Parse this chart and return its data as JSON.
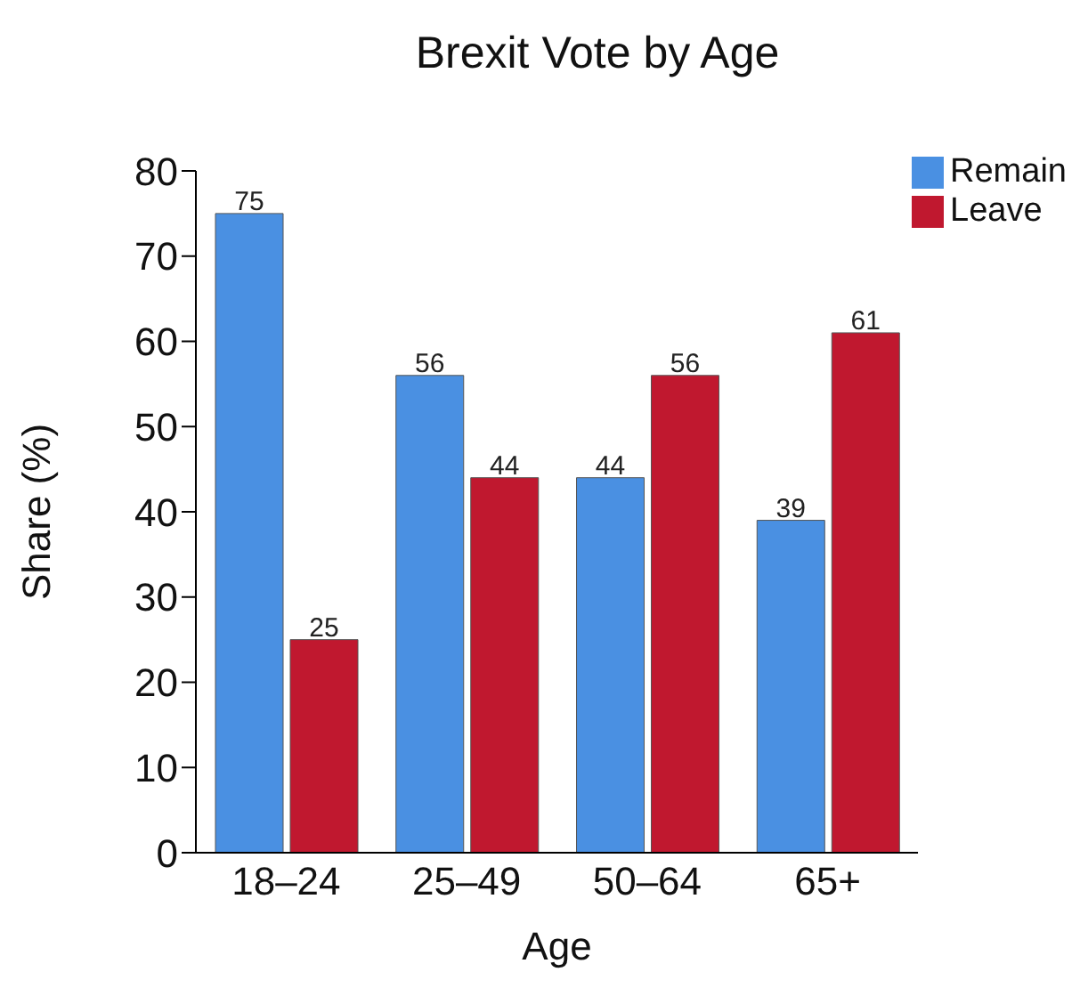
{
  "chart_data": {
    "type": "bar",
    "title": "Brexit Vote by Age",
    "xlabel": "Age",
    "ylabel": "Share (%)",
    "categories": [
      "18–24",
      "25–49",
      "50–64",
      "65+"
    ],
    "series": [
      {
        "name": "Remain",
        "color": "#4a90e2",
        "values": [
          75,
          56,
          44,
          39
        ]
      },
      {
        "name": "Leave",
        "color": "#c0182f",
        "values": [
          25,
          44,
          56,
          61
        ]
      }
    ],
    "ylim": [
      0,
      80
    ],
    "yticks": [
      0,
      10,
      20,
      30,
      40,
      50,
      60,
      70,
      80
    ],
    "grid": false,
    "legend": "top right",
    "data_labels": true
  }
}
